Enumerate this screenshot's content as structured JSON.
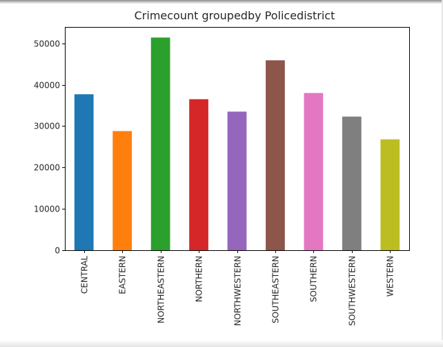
{
  "chart_data": {
    "type": "bar",
    "title": "Crimecount groupedby Policedistrict",
    "xlabel": "",
    "ylabel": "",
    "categories": [
      "CENTRAL",
      "EASTERN",
      "NORTHEASTERN",
      "NORTHERN",
      "NORTHWESTERN",
      "SOUTHEASTERN",
      "SOUTHERN",
      "SOUTHWESTERN",
      "WESTERN"
    ],
    "values": [
      37700,
      28800,
      51400,
      36500,
      33500,
      45900,
      38000,
      32300,
      26800
    ],
    "colors": [
      "#1f77b4",
      "#ff7f0e",
      "#2ca02c",
      "#d62728",
      "#9467bd",
      "#8c564b",
      "#e377c2",
      "#7f7f7f",
      "#bcbd22"
    ],
    "ylim": [
      0,
      53960
    ],
    "yticks": [
      0,
      10000,
      20000,
      30000,
      40000,
      50000
    ],
    "ytick_labels": [
      "0",
      "10000",
      "20000",
      "30000",
      "40000",
      "50000"
    ],
    "grid": false,
    "legend": "none"
  }
}
